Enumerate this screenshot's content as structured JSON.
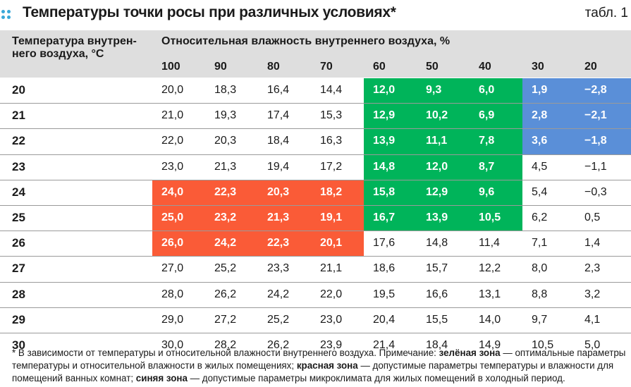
{
  "title": "Температуры точки росы при различных условиях*",
  "table_ref": "табл. 1",
  "header": {
    "row_header": "Температура внутрен-\nнего воздуха, °С",
    "group_header": "Относительная влажность внутреннего воздуха, %",
    "columns": [
      "100",
      "90",
      "80",
      "70",
      "60",
      "50",
      "40",
      "30",
      "20"
    ]
  },
  "rows": [
    {
      "t": "20",
      "v": [
        "20,0",
        "18,3",
        "16,4",
        "14,4",
        "12,0",
        "9,3",
        "6,0",
        "1,9",
        "−2,8"
      ]
    },
    {
      "t": "21",
      "v": [
        "21,0",
        "19,3",
        "17,4",
        "15,3",
        "12,9",
        "10,2",
        "6,9",
        "2,8",
        "−2,1"
      ]
    },
    {
      "t": "22",
      "v": [
        "22,0",
        "20,3",
        "18,4",
        "16,3",
        "13,9",
        "11,1",
        "7,8",
        "3,6",
        "−1,8"
      ]
    },
    {
      "t": "23",
      "v": [
        "23,0",
        "21,3",
        "19,4",
        "17,2",
        "14,8",
        "12,0",
        "8,7",
        "4,5",
        "−1,1"
      ]
    },
    {
      "t": "24",
      "v": [
        "24,0",
        "22,3",
        "20,3",
        "18,2",
        "15,8",
        "12,9",
        "9,6",
        "5,4",
        "−0,3"
      ]
    },
    {
      "t": "25",
      "v": [
        "25,0",
        "23,2",
        "21,3",
        "19,1",
        "16,7",
        "13,9",
        "10,5",
        "6,2",
        "0,5"
      ]
    },
    {
      "t": "26",
      "v": [
        "26,0",
        "24,2",
        "22,3",
        "20,1",
        "17,6",
        "14,8",
        "11,4",
        "7,1",
        "1,4"
      ]
    },
    {
      "t": "27",
      "v": [
        "27,0",
        "25,2",
        "23,3",
        "21,1",
        "18,6",
        "15,7",
        "12,2",
        "8,0",
        "2,3"
      ]
    },
    {
      "t": "28",
      "v": [
        "28,0",
        "26,2",
        "24,2",
        "22,0",
        "19,5",
        "16,6",
        "13,1",
        "8,8",
        "3,2"
      ]
    },
    {
      "t": "29",
      "v": [
        "29,0",
        "27,2",
        "25,2",
        "23,0",
        "20,4",
        "15,5",
        "14,0",
        "9,7",
        "4,1"
      ]
    },
    {
      "t": "30",
      "v": [
        "30,0",
        "28,2",
        "26,2",
        "23,9",
        "21,4",
        "18,4",
        "14,9",
        "10,5",
        "5,0"
      ]
    }
  ],
  "zones": {
    "green": {
      "color": "#00b45a",
      "rows": [
        "20",
        "21",
        "22",
        "23",
        "24",
        "25"
      ],
      "columns": [
        "60",
        "50",
        "40"
      ]
    },
    "red": {
      "color": "#fa5b37",
      "rows": [
        "24",
        "25",
        "26"
      ],
      "columns": [
        "100",
        "90",
        "80",
        "70"
      ]
    },
    "blue": {
      "color": "#5a8fd8",
      "rows": [
        "20",
        "21",
        "22"
      ],
      "columns": [
        "30",
        "20"
      ]
    }
  },
  "footnote": {
    "p1": "* В зависимости от температуры и относительной влажности внутреннего воздуха. Примечание: ",
    "green_label": "зелёная зона",
    "p2": " — оптимальные параметры температуры и относительной влажности в жилых помещениях; ",
    "red_label": "красная зона",
    "p3": " — допустимые параметры температуры и влажности для помещений ванных комнат; ",
    "blue_label": "синяя зона",
    "p4": " — допустимые параметры микроклимата для жилых помещений в холодный период."
  }
}
